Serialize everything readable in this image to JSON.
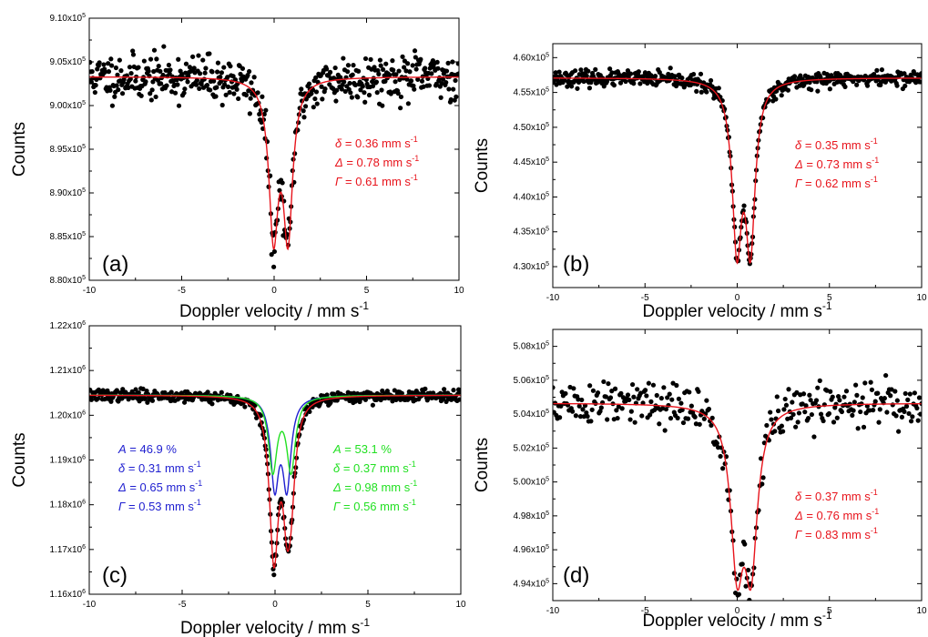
{
  "colors": {
    "points": "#000000",
    "fit": "#e8141c",
    "site1": "#1f1fd0",
    "site2": "#22e022",
    "total": "#e8141c"
  },
  "chart_data": [
    {
      "type": "scatter",
      "panel_label": "(a)",
      "xlabel": "Doppler velocity / mm s",
      "xlabel_sup": "-1",
      "ylabel": "Counts",
      "xlim": [
        -10,
        10
      ],
      "ylim": [
        880000,
        910000
      ],
      "x_ticks": [
        -10,
        -5,
        0,
        5,
        10
      ],
      "x_tick_labels": [
        "-10",
        "-5",
        "0",
        "5",
        "10"
      ],
      "y_ticks": [
        880000,
        885000,
        890000,
        895000,
        900000,
        905000,
        910000
      ],
      "y_tick_mantissa": [
        "8.80x10",
        "8.85x10",
        "8.90x10",
        "8.95x10",
        "9.00x10",
        "9.05x10",
        "9.10x10"
      ],
      "y_tick_exp": [
        "5",
        "5",
        "5",
        "5",
        "5",
        "5",
        "5"
      ],
      "baseline": 903300,
      "noise": 1300,
      "seed": 11,
      "n_points": 512,
      "fits": [
        {
          "color_key": "fit",
          "components": [
            {
              "center": 0.36,
              "split": 0.78,
              "gamma": 0.61,
              "depth": 17400
            }
          ]
        }
      ],
      "params": [
        {
          "color_key": "fit",
          "lines": [
            {
              "sym": "δ",
              "text": " = 0.36 mm s",
              "sup": "-1"
            },
            {
              "sym": "Δ",
              "text": " = 0.78 mm s",
              "sup": "-1"
            },
            {
              "sym": "Γ",
              "text": " = 0.61 mm s",
              "sup": "-1"
            }
          ]
        }
      ]
    },
    {
      "type": "scatter",
      "panel_label": "(b)",
      "xlabel": "Doppler velocity / mm s",
      "xlabel_sup": "-1",
      "ylabel": "Counts",
      "xlim": [
        -10,
        10
      ],
      "ylim": [
        427000,
        462000
      ],
      "x_ticks": [
        -10,
        -5,
        0,
        5,
        10
      ],
      "x_tick_labels": [
        "-10",
        "-5",
        "0",
        "5",
        "10"
      ],
      "y_ticks": [
        430000,
        435000,
        440000,
        445000,
        450000,
        455000,
        460000
      ],
      "y_tick_mantissa": [
        "4.30x10",
        "4.35x10",
        "4.40x10",
        "4.45x10",
        "4.50x10",
        "4.55x10",
        "4.60x10"
      ],
      "y_tick_exp": [
        "5",
        "5",
        "5",
        "5",
        "5",
        "5",
        "5"
      ],
      "baseline": 457100,
      "noise": 550,
      "seed": 23,
      "n_points": 512,
      "fits": [
        {
          "color_key": "fit",
          "components": [
            {
              "center": 0.35,
              "split": 0.73,
              "gamma": 0.62,
              "depth": 23000
            }
          ]
        }
      ],
      "params": [
        {
          "color_key": "fit",
          "lines": [
            {
              "sym": "δ",
              "text": " = 0.35 mm s",
              "sup": "-1"
            },
            {
              "sym": "Δ",
              "text": " = 0.73 mm s",
              "sup": "-1"
            },
            {
              "sym": "Γ",
              "text": " = 0.62 mm s",
              "sup": "-1"
            }
          ]
        }
      ]
    },
    {
      "type": "scatter",
      "panel_label": "(c)",
      "xlabel": "Doppler velocity / mm s",
      "xlabel_sup": "-1",
      "ylabel": "Counts",
      "xlim": [
        -10,
        10
      ],
      "ylim": [
        1160000,
        1220000
      ],
      "x_ticks": [
        -10,
        -5,
        0,
        5,
        10
      ],
      "x_tick_labels": [
        "-10",
        "-5",
        "0",
        "5",
        "10"
      ],
      "y_ticks": [
        1160000,
        1170000,
        1180000,
        1190000,
        1200000,
        1210000,
        1220000
      ],
      "y_tick_mantissa": [
        "1.16x10",
        "1.17x10",
        "1.18x10",
        "1.19x10",
        "1.20x10",
        "1.21x10",
        "1.22x10"
      ],
      "y_tick_exp": [
        "6",
        "6",
        "6",
        "6",
        "6",
        "6",
        "6"
      ],
      "baseline": 1204500,
      "noise": 650,
      "seed": 37,
      "n_points": 512,
      "fits": [
        {
          "color_key": "site1",
          "components": [
            {
              "center": 0.31,
              "split": 0.65,
              "gamma": 0.53,
              "depth": 19500
            }
          ]
        },
        {
          "color_key": "site2",
          "components": [
            {
              "center": 0.37,
              "split": 0.98,
              "gamma": 0.56,
              "depth": 16500
            }
          ]
        },
        {
          "color_key": "total",
          "components": [
            {
              "center": 0.31,
              "split": 0.65,
              "gamma": 0.53,
              "depth": 19500
            },
            {
              "center": 0.37,
              "split": 0.98,
              "gamma": 0.56,
              "depth": 16500
            }
          ]
        }
      ],
      "params": [
        {
          "color_key": "site1",
          "lines": [
            {
              "sym": "A",
              "text": " = 46.9 %",
              "sup": ""
            },
            {
              "sym": "δ",
              "text": " = 0.31 mm s",
              "sup": "-1"
            },
            {
              "sym": "Δ",
              "text": " = 0.65 mm s",
              "sup": "-1"
            },
            {
              "sym": "Γ",
              "text": " = 0.53 mm s",
              "sup": "-1"
            }
          ]
        },
        {
          "color_key": "site2",
          "lines": [
            {
              "sym": "A",
              "text": " = 53.1 %",
              "sup": ""
            },
            {
              "sym": "δ",
              "text": " = 0.37 mm s",
              "sup": "-1"
            },
            {
              "sym": "Δ",
              "text": " = 0.98 mm s",
              "sup": "-1"
            },
            {
              "sym": "Γ",
              "text": " = 0.56 mm s",
              "sup": "-1"
            }
          ]
        }
      ]
    },
    {
      "type": "scatter",
      "panel_label": "(d)",
      "xlabel": "Doppler velocity / mm s",
      "xlabel_sup": "-1",
      "ylabel": "Counts",
      "xlim": [
        -10,
        10
      ],
      "ylim": [
        493000,
        509000
      ],
      "x_ticks": [
        -10,
        -5,
        0,
        5,
        10
      ],
      "x_tick_labels": [
        "-10",
        "-5",
        "0",
        "5",
        "10"
      ],
      "y_ticks": [
        494000,
        496000,
        498000,
        500000,
        502000,
        504000,
        506000,
        508000
      ],
      "y_tick_mantissa": [
        "4.94x10",
        "4.96x10",
        "4.98x10",
        "5.00x10",
        "5.02x10",
        "5.04x10",
        "5.06x10",
        "5.08x10"
      ],
      "y_tick_exp": [
        "5",
        "5",
        "5",
        "5",
        "5",
        "5",
        "5",
        "5"
      ],
      "baseline": 504650,
      "noise": 700,
      "seed": 51,
      "n_points": 320,
      "fits": [
        {
          "color_key": "fit",
          "components": [
            {
              "center": 0.37,
              "split": 0.76,
              "gamma": 0.83,
              "depth": 8900
            }
          ]
        }
      ],
      "params": [
        {
          "color_key": "fit",
          "lines": [
            {
              "sym": "δ",
              "text": " = 0.37 mm s",
              "sup": "-1"
            },
            {
              "sym": "Δ",
              "text": " = 0.76 mm s",
              "sup": "-1"
            },
            {
              "sym": "Γ",
              "text": " = 0.83 mm s",
              "sup": "-1"
            }
          ]
        }
      ]
    }
  ]
}
